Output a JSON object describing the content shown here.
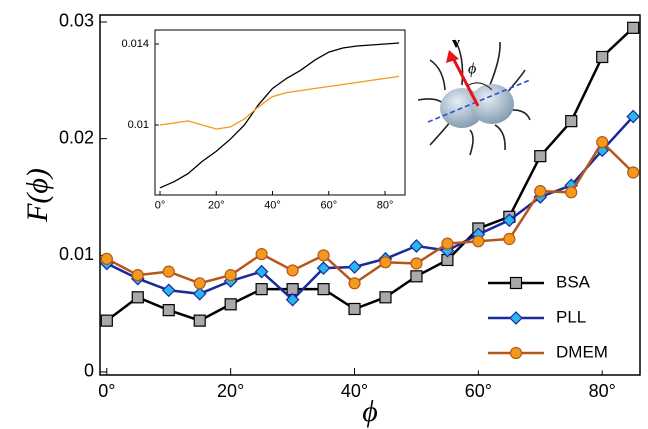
{
  "chart_data": [
    {
      "type": "line",
      "ylabel": "F(ϕ)",
      "xlabel": "ϕ",
      "xlim": [
        -1.1,
        86.1
      ],
      "ylim": [
        -0.00026,
        0.0306
      ],
      "xticks": [
        {
          "value": 0,
          "label": "0°"
        },
        {
          "value": 20,
          "label": "20°"
        },
        {
          "value": 40,
          "label": "40°"
        },
        {
          "value": 60,
          "label": "60°"
        },
        {
          "value": 80,
          "label": "80°"
        }
      ],
      "yticks": [
        0,
        0.01,
        0.02,
        0.03
      ],
      "legend": "lower right",
      "annotations": [
        "v",
        "ϕ"
      ],
      "x": [
        0,
        5,
        10,
        15,
        20,
        25,
        30,
        35,
        40,
        45,
        50,
        55,
        60,
        65,
        70,
        75,
        80,
        85
      ],
      "series": [
        {
          "name": "BSA",
          "color": "#000000",
          "marker": "square",
          "marker_color": "#a9a9a9",
          "values": [
            0.0044,
            0.0064,
            0.0053,
            0.0044,
            0.0058,
            0.0071,
            0.0071,
            0.0071,
            0.0054,
            0.0064,
            0.0082,
            0.0096,
            0.0123,
            0.0133,
            0.0185,
            0.0215,
            0.027,
            0.0295
          ]
        },
        {
          "name": "PLL",
          "color": "#1a2a9a",
          "marker": "diamond",
          "marker_color": "#29b6f0",
          "values": [
            0.0093,
            0.008,
            0.007,
            0.0067,
            0.0078,
            0.0086,
            0.0062,
            0.0089,
            0.009,
            0.0097,
            0.0108,
            0.0104,
            0.0118,
            0.013,
            0.015,
            0.016,
            0.019,
            0.0219
          ]
        },
        {
          "name": "DMEM",
          "color": "#b5561a",
          "marker": "circle",
          "marker_color": "#f39a1e",
          "values": [
            0.0097,
            0.0083,
            0.0086,
            0.0076,
            0.0083,
            0.0101,
            0.0087,
            0.01,
            0.0076,
            0.0094,
            0.0093,
            0.011,
            0.0112,
            0.0114,
            0.0155,
            0.0154,
            0.0197,
            0.0171
          ]
        }
      ]
    },
    {
      "type": "line",
      "xlim": [
        -1.78,
        87.1
      ],
      "ylim": [
        0.006543,
        0.01469
      ],
      "xticks": [
        {
          "value": 0,
          "label": "0°"
        },
        {
          "value": 20,
          "label": "20°"
        },
        {
          "value": 40,
          "label": "40°"
        },
        {
          "value": 60,
          "label": "60°"
        },
        {
          "value": 80,
          "label": "80°"
        }
      ],
      "yticks": [
        0.01,
        0.014
      ],
      "x": [
        0,
        5,
        10,
        15,
        20,
        25,
        30,
        35,
        40,
        45,
        50,
        55,
        60,
        65,
        70,
        75,
        80,
        85
      ],
      "series": [
        {
          "color": "#000000",
          "values": [
            0.0069,
            0.0072,
            0.0076,
            0.0082,
            0.0087,
            0.0093,
            0.01,
            0.011,
            0.0118,
            0.0123,
            0.0127,
            0.0132,
            0.0136,
            0.0138,
            0.0139,
            0.01395,
            0.014,
            0.01405
          ]
        },
        {
          "color": "#f39a1e",
          "values": [
            0.01,
            0.0101,
            0.0102,
            0.01,
            0.0098,
            0.0099,
            0.0103,
            0.0109,
            0.0114,
            0.0116,
            0.0117,
            0.0118,
            0.0119,
            0.012,
            0.0121,
            0.0122,
            0.0123,
            0.0124
          ]
        }
      ]
    }
  ]
}
